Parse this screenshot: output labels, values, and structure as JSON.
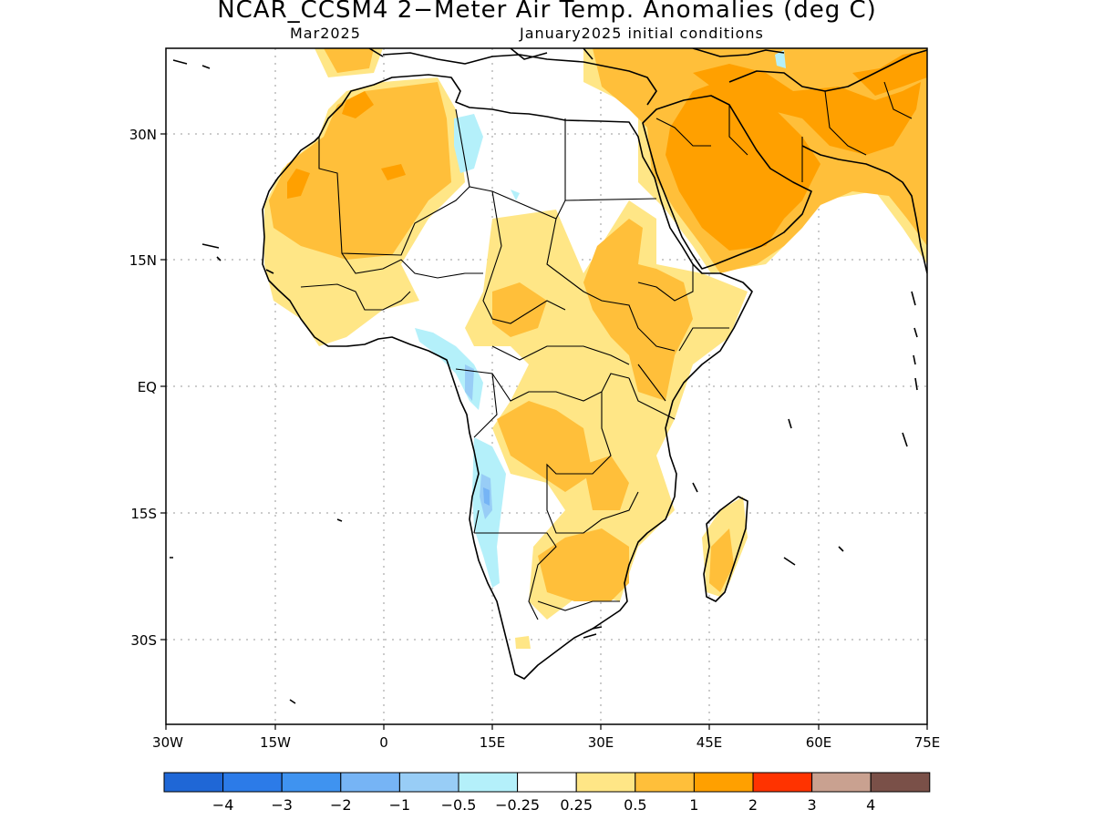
{
  "header": {
    "title": "NCAR_CCSM4 2−Meter Air Temp. Anomalies (deg C)",
    "valid_month": "Mar2025",
    "init": "January2025 initial conditions"
  },
  "axes": {
    "lat_labels": [
      "30N",
      "15N",
      "EQ",
      "15S",
      "30S"
    ],
    "lon_labels": [
      "30W",
      "15W",
      "0",
      "15E",
      "30E",
      "45E",
      "60E",
      "75E"
    ]
  },
  "legend": {
    "colors": [
      "#1f67d6",
      "#2c7be8",
      "#3f93f0",
      "#76b4f5",
      "#98cdf6",
      "#b4f0fa",
      "#ffffff",
      "#ffe686",
      "#ffbf3a",
      "#ffa000",
      "#ff3300",
      "#c9a190",
      "#7a5048"
    ],
    "labels": [
      "−4",
      "−3",
      "−2",
      "−1",
      "−0.5",
      "−0.25",
      "0.25",
      "0.5",
      "1",
      "2",
      "3",
      "4"
    ]
  },
  "map_features": {
    "land_outline": "land-outline",
    "country_borders": "country-borders",
    "anomaly_regions": [
      {
        "category": "0.5",
        "color": "#ffe686"
      },
      {
        "category": "1",
        "color": "#ffbf3a"
      },
      {
        "category": "2",
        "color": "#ffa000"
      },
      {
        "category": "-0.25",
        "color": "#b4f0fa"
      },
      {
        "category": "-0.5",
        "color": "#98cdf6"
      },
      {
        "category": "-1",
        "color": "#76b4f5"
      }
    ]
  }
}
